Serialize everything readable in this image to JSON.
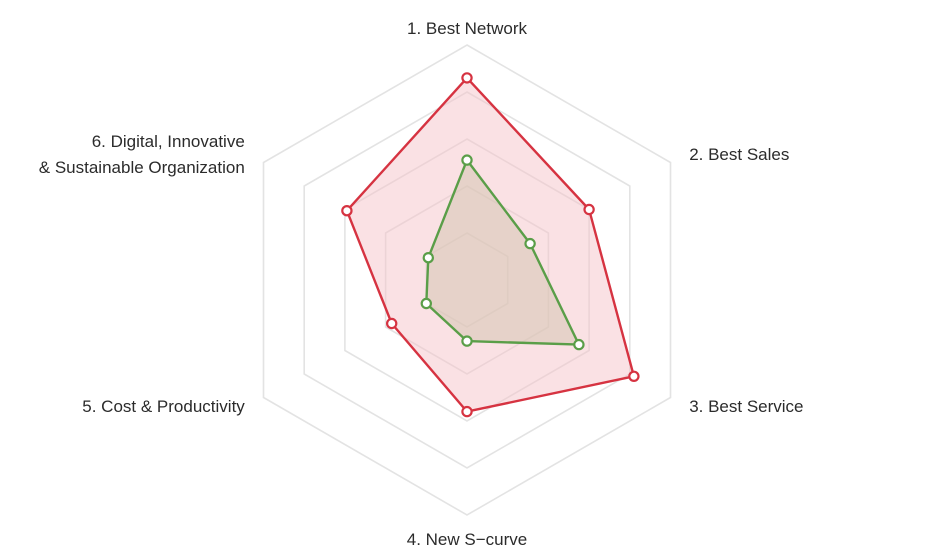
{
  "chart_data": {
    "type": "radar",
    "axes": [
      [
        "1. Best Network"
      ],
      [
        "2. Best Sales"
      ],
      [
        "3. Best Service"
      ],
      [
        "4. New S−curve"
      ],
      [
        "5. Cost & Productivity"
      ],
      [
        "6. Digital, Innovative",
        "& Sustainable Organization"
      ]
    ],
    "rmax": 5,
    "grid_levels": [
      1,
      2,
      3,
      4,
      5
    ],
    "grid": true,
    "legend": "none",
    "series": [
      {
        "values": [
          4.3,
          3.0,
          4.1,
          2.8,
          1.85,
          2.95
        ],
        "stroke": "#d63341",
        "fill": "#f6c4c9"
      },
      {
        "values": [
          2.55,
          1.55,
          2.75,
          1.3,
          1.0,
          0.95
        ],
        "stroke": "#5a9e48",
        "fill": "#d6c7b3"
      }
    ]
  }
}
